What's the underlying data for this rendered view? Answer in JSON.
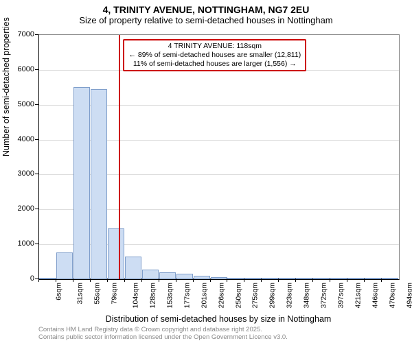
{
  "title": "4, TRINITY AVENUE, NOTTINGHAM, NG7 2EU",
  "subtitle": "Size of property relative to semi-detached houses in Nottingham",
  "ylabel": "Number of semi-detached properties",
  "xlabel": "Distribution of semi-detached houses by size in Nottingham",
  "credits_line1": "Contains HM Land Registry data © Crown copyright and database right 2025.",
  "credits_line2": "Contains public sector information licensed under the Open Government Licence v3.0.",
  "chart": {
    "type": "histogram",
    "ymax": 7000,
    "yticks": [
      0,
      1000,
      2000,
      3000,
      4000,
      5000,
      6000,
      7000
    ],
    "bin_width_sqm": 24,
    "bins_start_sqm": 6,
    "bar_fill": "#cdddf3",
    "bar_stroke": "#7f9ecb",
    "grid_color": "#dddddd",
    "marker_color": "#cc0000",
    "marker_value_sqm": 118,
    "values": [
      0,
      760,
      5500,
      5450,
      1460,
      640,
      280,
      200,
      150,
      100,
      60,
      30,
      0,
      0,
      0,
      0,
      0,
      0,
      0,
      0,
      0
    ],
    "x_tick_labels": [
      "6sqm",
      "31sqm",
      "55sqm",
      "79sqm",
      "104sqm",
      "128sqm",
      "153sqm",
      "177sqm",
      "201sqm",
      "226sqm",
      "250sqm",
      "275sqm",
      "299sqm",
      "323sqm",
      "348sqm",
      "372sqm",
      "397sqm",
      "421sqm",
      "446sqm",
      "470sqm",
      "494sqm"
    ]
  },
  "annotation": {
    "line1": "4 TRINITY AVENUE: 118sqm",
    "line2": "← 89% of semi-detached houses are smaller (12,811)",
    "line3": "11% of semi-detached houses are larger (1,556) →",
    "border_color": "#cc0000"
  }
}
